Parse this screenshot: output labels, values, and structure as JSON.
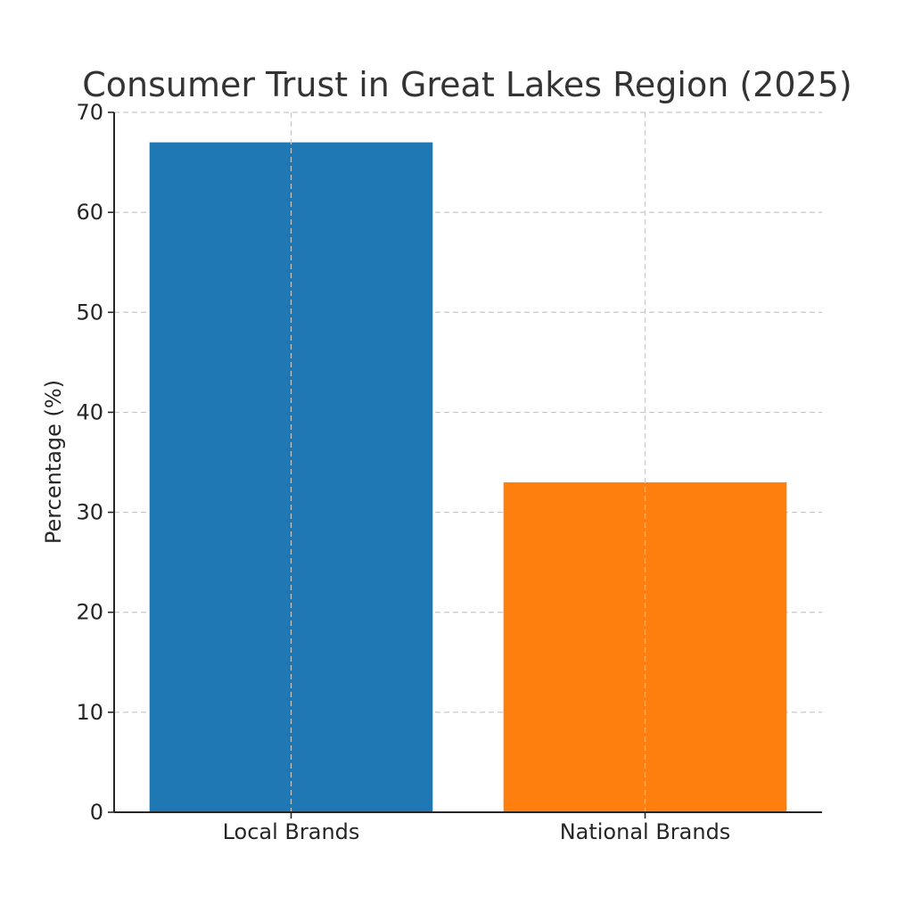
{
  "chart_data": {
    "type": "bar",
    "title": "Consumer Trust in Great Lakes Region (2025)",
    "xlabel": "",
    "ylabel": "Percentage (%)",
    "categories": [
      "Local Brands",
      "National Brands"
    ],
    "values": [
      67,
      33
    ],
    "colors": [
      "#1f77b4",
      "#ff7f0e"
    ],
    "ylim": [
      0,
      70
    ],
    "yticks": [
      0,
      10,
      20,
      30,
      40,
      50,
      60,
      70
    ],
    "grid": true
  }
}
